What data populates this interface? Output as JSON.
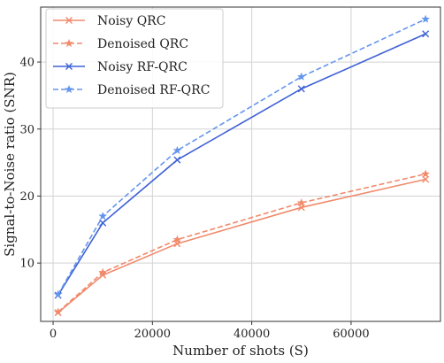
{
  "chart_data": {
    "type": "line",
    "xlabel": "Number of shots (S)",
    "ylabel": "Signal-to-Noise ratio (SNR)",
    "xlim": [
      -2500,
      78000
    ],
    "ylim": [
      1.3,
      48.2
    ],
    "xticks": [
      0,
      20000,
      40000,
      60000
    ],
    "yticks": [
      10,
      20,
      30,
      40
    ],
    "grid": true,
    "legend_position": "top-left",
    "x": [
      1000,
      10000,
      25000,
      50000,
      75000
    ],
    "series": [
      {
        "name": "Noisy QRC",
        "values": [
          2.6,
          8.2,
          12.9,
          18.3,
          22.5
        ],
        "color": "#f08a6b",
        "dash": "solid",
        "marker": "x"
      },
      {
        "name": "Denoised QRC",
        "values": [
          2.7,
          8.6,
          13.5,
          19.0,
          23.3
        ],
        "color": "#f08a6b",
        "dash": "dashed",
        "marker": "star"
      },
      {
        "name": "Noisy RF-QRC",
        "values": [
          5.2,
          16.0,
          25.4,
          36.0,
          44.2
        ],
        "color": "#3f61d6",
        "dash": "solid",
        "marker": "x"
      },
      {
        "name": "Denoised RF-QRC",
        "values": [
          5.3,
          17.0,
          26.8,
          37.8,
          46.4
        ],
        "color": "#6495ed",
        "dash": "dashed",
        "marker": "star"
      }
    ]
  }
}
